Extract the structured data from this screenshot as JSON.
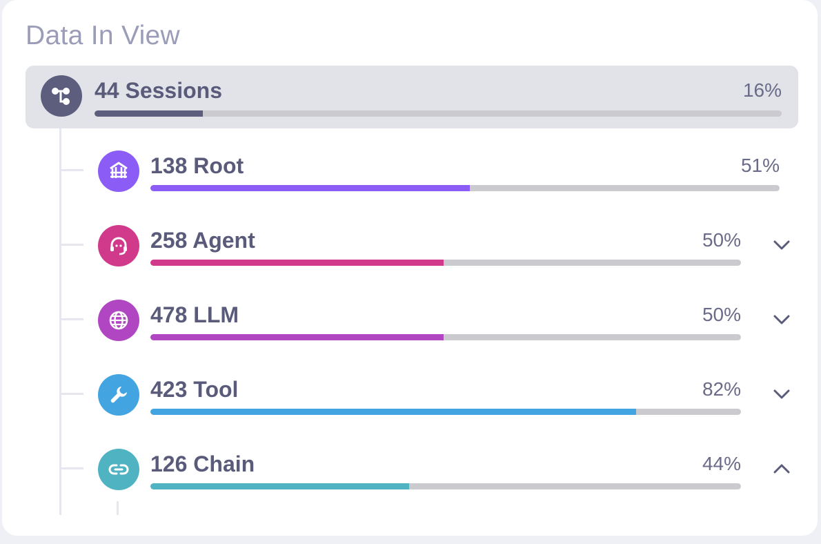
{
  "panel": {
    "title": "Data In View"
  },
  "sessions": {
    "label": "44 Sessions",
    "percent_text": "16%",
    "fraction": 0.158,
    "color": "#5d5e7e",
    "icon": "tree-structure-icon"
  },
  "rows": [
    {
      "label": "138 Root",
      "percent_text": "51%",
      "fraction": 0.508,
      "color": "#8b5cf6",
      "icon": "root-icon",
      "expand": "none"
    },
    {
      "label": "258 Agent",
      "percent_text": "50%",
      "fraction": 0.497,
      "color": "#d13a8a",
      "icon": "agent-icon",
      "expand": "collapsed"
    },
    {
      "label": "478 LLM",
      "percent_text": "50%",
      "fraction": 0.496,
      "color": "#b046c2",
      "icon": "globe-icon",
      "expand": "collapsed"
    },
    {
      "label": "423 Tool",
      "percent_text": "82%",
      "fraction": 0.823,
      "color": "#42a4e0",
      "icon": "wrench-icon",
      "expand": "collapsed"
    },
    {
      "label": "126 Chain",
      "percent_text": "44%",
      "fraction": 0.438,
      "color": "#4fb3c2",
      "icon": "link-icon",
      "expand": "expanded"
    }
  ]
}
